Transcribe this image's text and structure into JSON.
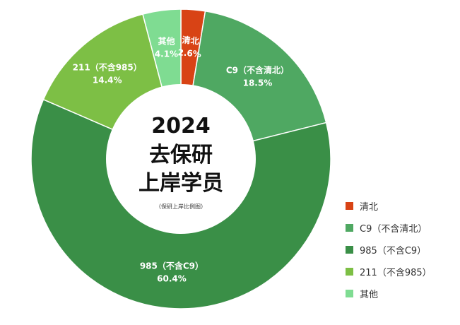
{
  "chart_data": {
    "type": "pie",
    "donut": true,
    "center_title": [
      "2024",
      "去保研",
      "上岸学员"
    ],
    "center_note": "（保研上岸比例图）",
    "legend_position": "right",
    "slices": [
      {
        "label": "清北",
        "name_text": "清北",
        "value": 2.6,
        "value_text": "2.6%",
        "color": "#d84315"
      },
      {
        "label": "C9（不含清北）",
        "name_text": "C9（不含清北）",
        "value": 18.5,
        "value_text": "18.5%",
        "color": "#4fa862"
      },
      {
        "label": "985（不含C9）",
        "name_text": "985（不含C9）",
        "value": 60.4,
        "value_text": "60.4%",
        "color": "#3a8f47"
      },
      {
        "label": "211（不含985）",
        "name_text": "211（不含985）",
        "value": 14.4,
        "value_text": "14.4%",
        "color": "#7dbf45"
      },
      {
        "label": "其他",
        "name_text": "其他",
        "value": 4.1,
        "value_text": "4.1%",
        "color": "#7fdc92"
      }
    ]
  }
}
